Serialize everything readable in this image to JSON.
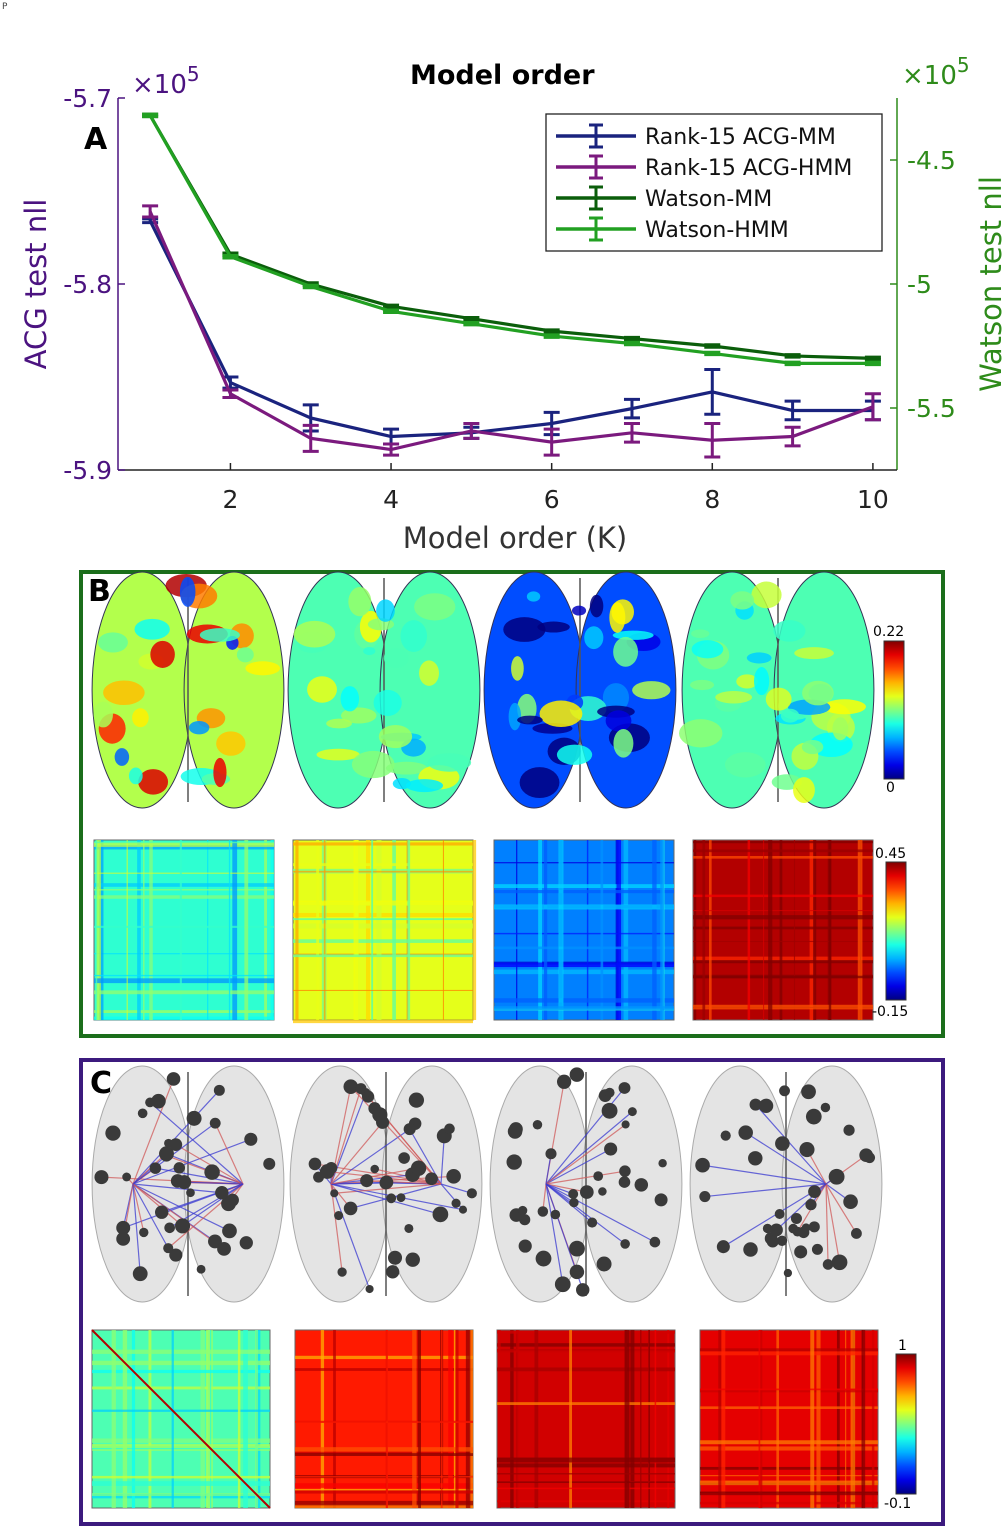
{
  "corner_mark": "P",
  "panel_letters": {
    "a": "A",
    "b": "B",
    "c": "C"
  },
  "colors": {
    "rank15_acg_mm": "#1a237e",
    "rank15_acg_hmm": "#7b1a7e",
    "watson_mm": "#0b5e0b",
    "watson_hmm": "#22a022",
    "left_axis": "#4b1380",
    "right_axis": "#2e8b1a",
    "frame_b": "#1b6e1b",
    "frame_c": "#3c1a7e"
  },
  "chart_data": {
    "type": "line",
    "title": "Model order",
    "xlabel": "Model order (K)",
    "ylabel_left": "ACG test nll",
    "ylabel_right": "Watson test nll",
    "exponent_left": "×10",
    "exponent_right": "×10",
    "exponent_power": "5",
    "x": [
      1,
      2,
      3,
      4,
      5,
      6,
      7,
      8,
      9,
      10
    ],
    "xlim": [
      0.6,
      10.3
    ],
    "xticks": [
      "2",
      "4",
      "6",
      "8",
      "10"
    ],
    "ylim_left": [
      -5.9,
      -5.7
    ],
    "yticks_left": [
      "-5.7",
      "-5.8",
      "-5.9"
    ],
    "ylim_right": [
      -5.75,
      -4.25
    ],
    "yticks_right": [
      "-4.5",
      "-5",
      "-5.5"
    ],
    "legend_position": "top-right",
    "series": [
      {
        "name": "Rank-15 ACG-MM",
        "axis": "left",
        "values": [
          -5.766,
          -5.853,
          -5.872,
          -5.882,
          -5.88,
          -5.875,
          -5.867,
          -5.858,
          -5.868,
          -5.868
        ],
        "errors": [
          0.001,
          0.003,
          0.007,
          0.004,
          0.003,
          0.006,
          0.005,
          0.012,
          0.005,
          0.005
        ]
      },
      {
        "name": "Rank-15 ACG-HMM",
        "axis": "left",
        "values": [
          -5.761,
          -5.859,
          -5.883,
          -5.889,
          -5.879,
          -5.885,
          -5.88,
          -5.884,
          -5.882,
          -5.866
        ],
        "errors": [
          0.003,
          0.002,
          0.007,
          0.003,
          0.004,
          0.007,
          0.005,
          0.009,
          0.005,
          0.007
        ]
      },
      {
        "name": "Watson-MM",
        "axis": "right",
        "values": [
          -4.32,
          -4.88,
          -5.0,
          -5.09,
          -5.14,
          -5.19,
          -5.22,
          -5.25,
          -5.29,
          -5.3
        ],
        "errors": [
          0.005,
          0.005,
          0.005,
          0.005,
          0.005,
          0.005,
          0.005,
          0.005,
          0.005,
          0.005
        ]
      },
      {
        "name": "Watson-HMM",
        "axis": "right",
        "values": [
          -4.32,
          -4.89,
          -5.01,
          -5.11,
          -5.16,
          -5.21,
          -5.24,
          -5.28,
          -5.32,
          -5.32
        ],
        "errors": [
          0.005,
          0.005,
          0.005,
          0.005,
          0.005,
          0.005,
          0.005,
          0.005,
          0.005,
          0.005
        ]
      }
    ]
  },
  "panel_b": {
    "colorbar_brain": {
      "max": "0.22",
      "min": "0"
    },
    "colorbar_matrix": {
      "max": "0.45",
      "min": "-0.15"
    },
    "brain_levels": [
      0.55,
      0.45,
      0.2,
      0.45
    ],
    "matrix_levels": [
      0.42,
      0.6,
      0.25,
      0.95
    ]
  },
  "panel_c": {
    "colorbar_matrix": {
      "max": "1",
      "min": "-0.1"
    },
    "matrix_levels": [
      0.45,
      0.85,
      0.92,
      0.9
    ]
  }
}
